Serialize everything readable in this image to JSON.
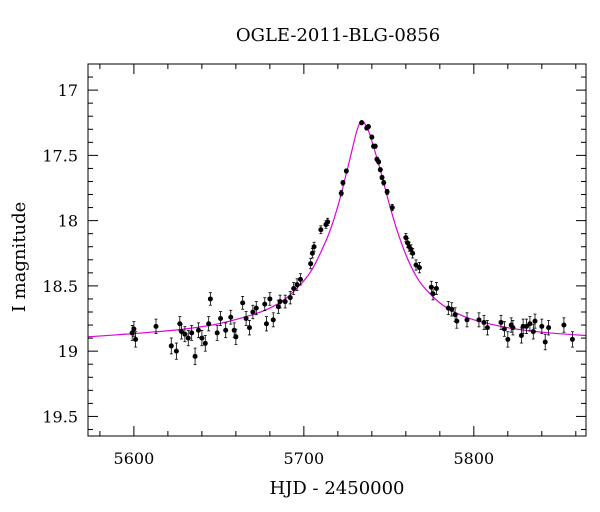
{
  "chart_data": {
    "type": "scatter",
    "title": "OGLE-2011-BLG-0856",
    "xlabel": "HJD - 2450000",
    "ylabel": "I magnitude",
    "xlim": [
      5573,
      5866
    ],
    "ylim": [
      19.65,
      16.8
    ],
    "y_inverted": true,
    "x_major_ticks": [
      5600,
      5700,
      5800
    ],
    "x_minor_step": 20,
    "y_major_ticks": [
      17,
      17.5,
      18,
      18.5,
      19,
      19.5
    ],
    "y_minor_step": 0.1,
    "grid": false,
    "legend": "none",
    "colors": {
      "points": "#000000",
      "model": "#e000e0",
      "axes": "#000000"
    },
    "model_curve": {
      "name": "",
      "x": [
        5573,
        5590,
        5610,
        5630,
        5650,
        5670,
        5680,
        5690,
        5700,
        5705,
        5710,
        5715,
        5720,
        5725,
        5728,
        5731,
        5733,
        5734,
        5735,
        5736,
        5738,
        5740,
        5743,
        5746,
        5750,
        5755,
        5760,
        5765,
        5770,
        5780,
        5790,
        5800,
        5820,
        5840,
        5866
      ],
      "y": [
        18.89,
        18.875,
        18.855,
        18.83,
        18.79,
        18.72,
        18.67,
        18.59,
        18.46,
        18.37,
        18.24,
        18.09,
        17.89,
        17.64,
        17.48,
        17.32,
        17.25,
        17.235,
        17.24,
        17.26,
        17.31,
        17.39,
        17.52,
        17.66,
        17.86,
        18.08,
        18.26,
        18.4,
        18.5,
        18.63,
        18.71,
        18.76,
        18.82,
        18.855,
        18.88
      ]
    },
    "points": [
      {
        "x": 5599,
        "y": 18.86
      },
      {
        "x": 5600,
        "y": 18.83
      },
      {
        "x": 5601,
        "y": 18.91
      },
      {
        "x": 5613,
        "y": 18.81
      },
      {
        "x": 5622,
        "y": 18.96
      },
      {
        "x": 5625,
        "y": 19.0
      },
      {
        "x": 5627,
        "y": 18.79
      },
      {
        "x": 5628,
        "y": 18.85
      },
      {
        "x": 5630,
        "y": 18.87
      },
      {
        "x": 5632,
        "y": 18.9
      },
      {
        "x": 5634,
        "y": 18.86
      },
      {
        "x": 5636,
        "y": 19.04
      },
      {
        "x": 5638,
        "y": 18.84
      },
      {
        "x": 5640,
        "y": 18.9
      },
      {
        "x": 5642,
        "y": 18.94
      },
      {
        "x": 5644,
        "y": 18.79
      },
      {
        "x": 5645,
        "y": 18.6
      },
      {
        "x": 5649,
        "y": 18.86
      },
      {
        "x": 5651,
        "y": 18.75
      },
      {
        "x": 5654,
        "y": 18.84
      },
      {
        "x": 5657,
        "y": 18.74
      },
      {
        "x": 5659,
        "y": 18.84
      },
      {
        "x": 5660,
        "y": 18.89
      },
      {
        "x": 5664,
        "y": 18.63
      },
      {
        "x": 5666,
        "y": 18.75
      },
      {
        "x": 5668,
        "y": 18.82
      },
      {
        "x": 5670,
        "y": 18.7
      },
      {
        "x": 5672,
        "y": 18.67
      },
      {
        "x": 5677,
        "y": 18.64
      },
      {
        "x": 5678,
        "y": 18.79
      },
      {
        "x": 5680,
        "y": 18.6
      },
      {
        "x": 5682,
        "y": 18.76
      },
      {
        "x": 5685,
        "y": 18.66
      },
      {
        "x": 5686,
        "y": 18.62
      },
      {
        "x": 5689,
        "y": 18.62
      },
      {
        "x": 5692,
        "y": 18.59
      },
      {
        "x": 5694,
        "y": 18.52
      },
      {
        "x": 5696,
        "y": 18.49
      },
      {
        "x": 5698,
        "y": 18.45
      },
      {
        "x": 5704,
        "y": 18.33
      },
      {
        "x": 5705,
        "y": 18.25
      },
      {
        "x": 5706,
        "y": 18.2
      },
      {
        "x": 5710,
        "y": 18.07
      },
      {
        "x": 5713,
        "y": 18.03
      },
      {
        "x": 5714,
        "y": 18.01
      },
      {
        "x": 5722,
        "y": 17.79
      },
      {
        "x": 5723,
        "y": 17.71
      },
      {
        "x": 5725,
        "y": 17.62
      },
      {
        "x": 5734,
        "y": 17.25
      },
      {
        "x": 5737,
        "y": 17.29
      },
      {
        "x": 5738,
        "y": 17.28
      },
      {
        "x": 5740,
        "y": 17.36
      },
      {
        "x": 5741,
        "y": 17.43
      },
      {
        "x": 5742,
        "y": 17.43
      },
      {
        "x": 5743,
        "y": 17.53
      },
      {
        "x": 5744,
        "y": 17.55
      },
      {
        "x": 5745,
        "y": 17.61
      },
      {
        "x": 5746,
        "y": 17.67
      },
      {
        "x": 5747,
        "y": 17.71
      },
      {
        "x": 5749,
        "y": 17.78
      },
      {
        "x": 5752,
        "y": 17.9
      },
      {
        "x": 5760,
        "y": 18.13
      },
      {
        "x": 5761,
        "y": 18.17
      },
      {
        "x": 5762,
        "y": 18.2
      },
      {
        "x": 5763,
        "y": 18.22
      },
      {
        "x": 5764,
        "y": 18.25
      },
      {
        "x": 5766,
        "y": 18.34
      },
      {
        "x": 5768,
        "y": 18.36
      },
      {
        "x": 5775,
        "y": 18.51
      },
      {
        "x": 5776,
        "y": 18.56
      },
      {
        "x": 5778,
        "y": 18.52
      },
      {
        "x": 5785,
        "y": 18.67
      },
      {
        "x": 5787,
        "y": 18.68
      },
      {
        "x": 5789,
        "y": 18.72
      },
      {
        "x": 5790,
        "y": 18.77
      },
      {
        "x": 5796,
        "y": 18.76
      },
      {
        "x": 5803,
        "y": 18.76
      },
      {
        "x": 5806,
        "y": 18.78
      },
      {
        "x": 5808,
        "y": 18.82
      },
      {
        "x": 5816,
        "y": 18.78
      },
      {
        "x": 5818,
        "y": 18.83
      },
      {
        "x": 5820,
        "y": 18.91
      },
      {
        "x": 5822,
        "y": 18.8
      },
      {
        "x": 5823,
        "y": 18.82
      },
      {
        "x": 5828,
        "y": 18.88
      },
      {
        "x": 5829,
        "y": 18.81
      },
      {
        "x": 5831,
        "y": 18.81
      },
      {
        "x": 5833,
        "y": 18.79
      },
      {
        "x": 5835,
        "y": 18.85
      },
      {
        "x": 5836,
        "y": 18.77
      },
      {
        "x": 5840,
        "y": 18.81
      },
      {
        "x": 5842,
        "y": 18.93
      },
      {
        "x": 5844,
        "y": 18.82
      },
      {
        "x": 5853,
        "y": 18.8
      },
      {
        "x": 5858,
        "y": 18.91
      }
    ]
  }
}
